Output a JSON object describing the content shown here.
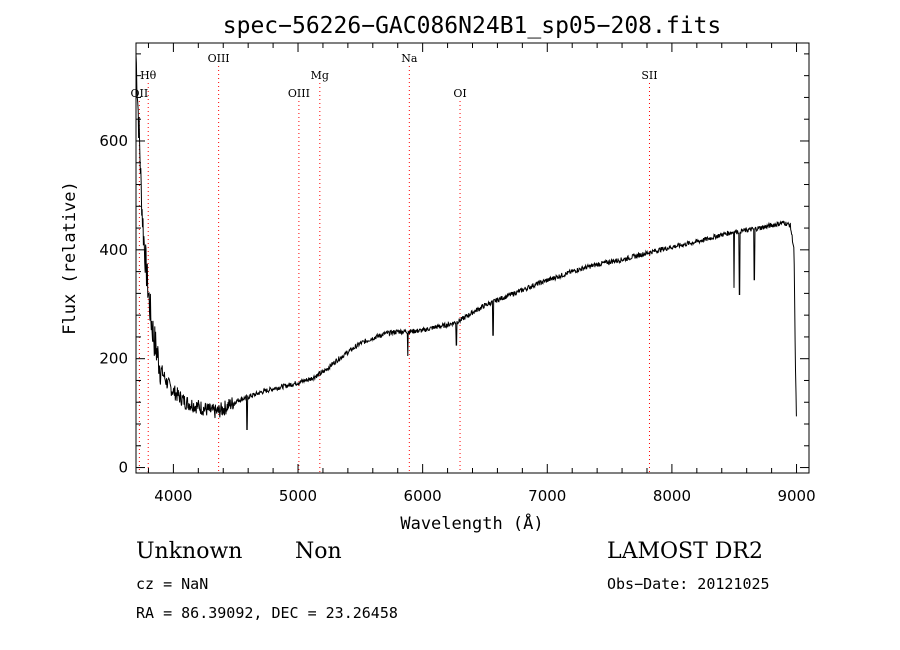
{
  "chart_data": {
    "type": "line",
    "title": "spec−56226−GAC086N24B1_sp05−208.fits",
    "xlabel": "Wavelength (Å)",
    "ylabel": "Flux (relative)",
    "xlim": [
      3700,
      9100
    ],
    "ylim": [
      -10,
      780
    ],
    "xticks": [
      4000,
      5000,
      6000,
      7000,
      8000,
      9000
    ],
    "yticks": [
      0,
      200,
      400,
      600
    ],
    "grid": false,
    "line_color": "#000000",
    "marker_color": "#ff0000",
    "lines": [
      {
        "label": "OII",
        "x": 3727,
        "row": 3
      },
      {
        "label": "Hθ",
        "x": 3798,
        "row": 2
      },
      {
        "label": "OIII",
        "x": 4363,
        "row": 1
      },
      {
        "label": "OIII",
        "x": 5007,
        "row": 3
      },
      {
        "label": "Mg",
        "x": 5175,
        "row": 2
      },
      {
        "label": "Na",
        "x": 5893,
        "row": 1
      },
      {
        "label": "OI",
        "x": 6300,
        "row": 3
      },
      {
        "label": "SII",
        "x": 7820,
        "row": 2
      }
    ],
    "series": [
      {
        "x": [
          3700,
          3710,
          3720,
          3730,
          3740,
          3750,
          3760,
          3770,
          3780,
          3790,
          3800,
          3820,
          3850,
          3900,
          3950,
          4000,
          4050,
          4100,
          4150,
          4200,
          4250,
          4300,
          4350,
          4400,
          4450,
          4500,
          4600,
          4700,
          4800,
          4900,
          5000,
          5100,
          5200,
          5300,
          5400,
          5500,
          5600,
          5700,
          5800,
          5900,
          6000,
          6100,
          6200,
          6300,
          6400,
          6500,
          6600,
          6700,
          6800,
          6900,
          7000,
          7100,
          7200,
          7300,
          7400,
          7500,
          7600,
          7700,
          7800,
          7900,
          8000,
          8100,
          8200,
          8300,
          8400,
          8500,
          8600,
          8700,
          8800,
          8900,
          8950,
          8980,
          8990,
          9000
        ],
        "y": [
          760,
          700,
          640,
          590,
          520,
          470,
          430,
          400,
          370,
          345,
          320,
          275,
          230,
          180,
          155,
          140,
          130,
          120,
          116,
          112,
          108,
          104,
          102,
          108,
          115,
          122,
          130,
          138,
          145,
          150,
          156,
          163,
          175,
          195,
          212,
          228,
          238,
          246,
          250,
          250,
          252,
          258,
          262,
          270,
          285,
          298,
          308,
          317,
          326,
          336,
          344,
          352,
          360,
          367,
          373,
          378,
          382,
          388,
          394,
          400,
          405,
          410,
          415,
          421,
          428,
          433,
          436,
          440,
          445,
          450,
          445,
          400,
          200,
          80
        ]
      }
    ],
    "absorption_dips": [
      {
        "x": 4590,
        "y": 70
      },
      {
        "x": 5880,
        "y": 205
      },
      {
        "x": 6270,
        "y": 225
      },
      {
        "x": 6565,
        "y": 243
      },
      {
        "x": 8498,
        "y": 330
      },
      {
        "x": 8542,
        "y": 318
      },
      {
        "x": 8662,
        "y": 345
      }
    ]
  },
  "footer": {
    "object_class": "Unknown",
    "subclass": "Non",
    "cz": "cz = NaN",
    "radec": "RA =  86.39092, DEC =  23.26458",
    "survey": "LAMOST DR2",
    "obs_date": "Obs−Date: 20121025"
  }
}
